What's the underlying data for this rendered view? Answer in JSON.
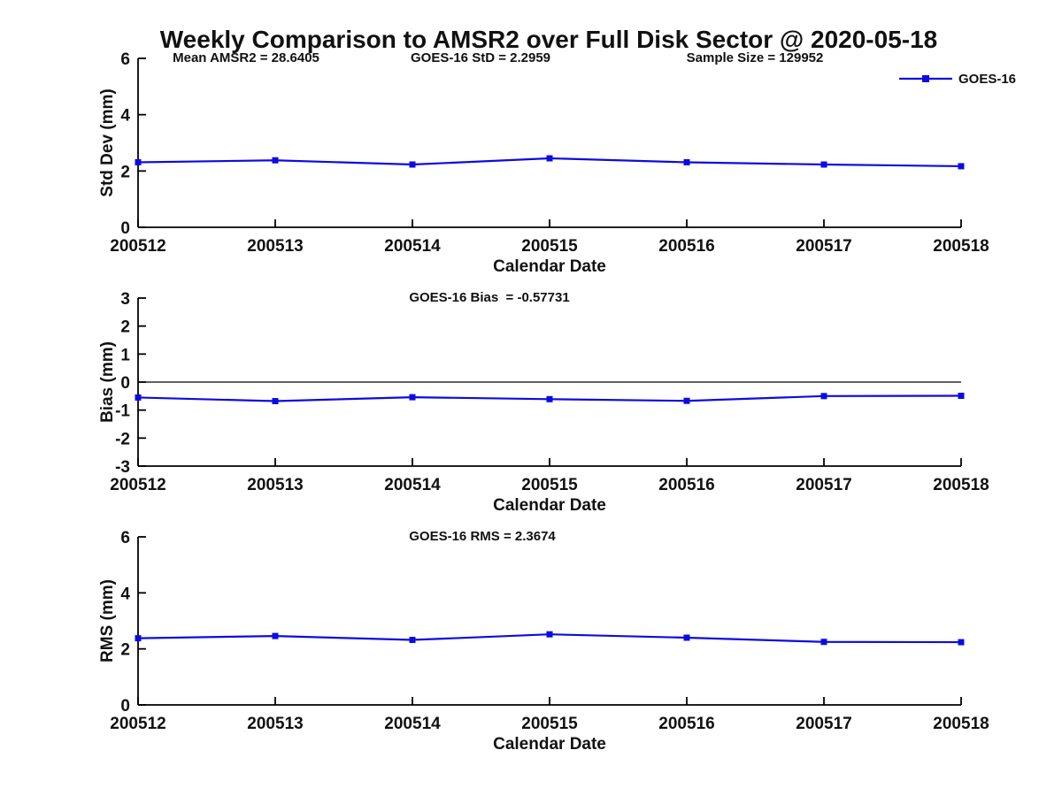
{
  "title": "Weekly Comparison to AMSR2 over Full Disk Sector @ 2020-05-18",
  "legend": {
    "label": "GOES-16",
    "position": "top-right",
    "color": "#0c0ce0"
  },
  "colors": {
    "line": "#0c0ce0",
    "axis": "#000000",
    "text": "#111111",
    "background": "#ffffff"
  },
  "x_axis_label": "Calendar Date",
  "categories": [
    "200512",
    "200513",
    "200514",
    "200515",
    "200516",
    "200517",
    "200518"
  ],
  "chart_data": [
    {
      "type": "line",
      "panel": "std-dev",
      "categories": [
        "200512",
        "200513",
        "200514",
        "200515",
        "200516",
        "200517",
        "200518"
      ],
      "series": [
        {
          "name": "GOES-16",
          "values": [
            2.31,
            2.38,
            2.23,
            2.45,
            2.31,
            2.23,
            2.17
          ]
        }
      ],
      "xlabel": "Calendar Date",
      "ylabel": "Std Dev (mm)",
      "ylim": [
        0,
        6
      ],
      "yticks": [
        0,
        2,
        4,
        6
      ],
      "grid": false,
      "zero_line": false,
      "marker": "square",
      "annotations": [
        "Mean AMSR2 = 28.6405",
        "GOES-16 StD = 2.2959",
        "Sample Size = 129952"
      ]
    },
    {
      "type": "line",
      "panel": "bias",
      "categories": [
        "200512",
        "200513",
        "200514",
        "200515",
        "200516",
        "200517",
        "200518"
      ],
      "series": [
        {
          "name": "GOES-16",
          "values": [
            -0.55,
            -0.68,
            -0.54,
            -0.61,
            -0.67,
            -0.5,
            -0.49
          ]
        }
      ],
      "xlabel": "Calendar Date",
      "ylabel": "Bias (mm)",
      "ylim": [
        -3,
        3
      ],
      "yticks": [
        3,
        2,
        1,
        0,
        -1,
        -2,
        -3
      ],
      "grid": false,
      "zero_line": true,
      "marker": "square",
      "annotations": [
        "GOES-16 Bias  = -0.57731"
      ]
    },
    {
      "type": "line",
      "panel": "rms",
      "categories": [
        "200512",
        "200513",
        "200514",
        "200515",
        "200516",
        "200517",
        "200518"
      ],
      "series": [
        {
          "name": "GOES-16",
          "values": [
            2.38,
            2.46,
            2.32,
            2.52,
            2.4,
            2.25,
            2.24
          ]
        }
      ],
      "xlabel": "Calendar Date",
      "ylabel": "RMS (mm)",
      "ylim": [
        0,
        6
      ],
      "yticks": [
        0,
        2,
        4,
        6
      ],
      "grid": false,
      "zero_line": false,
      "marker": "square",
      "annotations": [
        "GOES-16 RMS = 2.3674"
      ]
    }
  ]
}
